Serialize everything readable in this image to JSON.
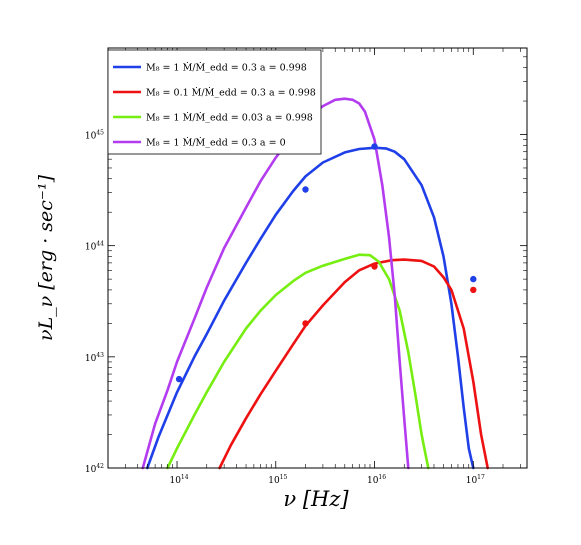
{
  "chart_data": {
    "type": "line",
    "title": "",
    "xlabel": "ν [Hz]",
    "ylabel": "νL_ν [erg · sec⁻¹]",
    "x_scale": "log",
    "y_scale": "log",
    "xlim": [
      20000000000000.0,
      3.5e+17
    ],
    "ylim": [
      1e+42,
      6e+45
    ],
    "grid": false,
    "legend_position": "top-left",
    "x_ticks": [
      {
        "base": "10",
        "exp": "14",
        "value": 100000000000000.0
      },
      {
        "base": "10",
        "exp": "15",
        "value": 1000000000000000.0
      },
      {
        "base": "10",
        "exp": "16",
        "value": 1e+16
      },
      {
        "base": "10",
        "exp": "17",
        "value": 1e+17
      }
    ],
    "y_ticks": [
      {
        "base": "10",
        "exp": "42",
        "value": 1e+42
      },
      {
        "base": "10",
        "exp": "43",
        "value": 1e+43
      },
      {
        "base": "10",
        "exp": "44",
        "value": 1e+44
      },
      {
        "base": "10",
        "exp": "45",
        "value": 1e+45
      }
    ],
    "series": [
      {
        "name": "M₈ = 1  Ṁ/Ṁ_edd = 0.3  a = 0.998",
        "color": "#1f3fe8",
        "x": [
          50000000000000.0,
          65000000000000.0,
          100000000000000.0,
          150000000000000.0,
          200000000000000.0,
          300000000000000.0,
          500000000000000.0,
          700000000000000.0,
          1000000000000000.0,
          1500000000000000.0,
          2000000000000000.0,
          3000000000000000.0,
          5000000000000000.0,
          7000000000000000.0,
          1e+16,
          1.3e+16,
          1.6e+16,
          2e+16,
          3e+16,
          4e+16,
          5e+16,
          6e+16,
          7e+16,
          8e+16,
          9e+16,
          1e+17
        ],
        "y": [
          1e+42,
          1.9e+42,
          4.8e+42,
          1e+43,
          1.6e+43,
          3.2e+43,
          7e+43,
          1.15e+44,
          1.9e+44,
          3.1e+44,
          4.2e+44,
          5.6e+44,
          6.9e+44,
          7.4e+44,
          7.6e+44,
          7.5e+44,
          7e+44,
          6e+44,
          3.5e+44,
          1.8e+44,
          8e+43,
          3e+43,
          1e+43,
          3.5e+42,
          1.5e+42,
          1e+42
        ]
      },
      {
        "name": "M₈ = 0.1  Ṁ/Ṁ_edd = 0.3  a = 0.998",
        "color": "#ee1111",
        "x": [
          270000000000000.0,
          350000000000000.0,
          500000000000000.0,
          700000000000000.0,
          1000000000000000.0,
          1500000000000000.0,
          2000000000000000.0,
          3000000000000000.0,
          5000000000000000.0,
          7000000000000000.0,
          1e+16,
          1.5e+16,
          2e+16,
          3e+16,
          4e+16,
          5e+16,
          6e+16,
          8e+16,
          1e+17,
          1.2e+17,
          1.4e+17
        ],
        "y": [
          1e+42,
          1.6e+42,
          2.8e+42,
          4.6e+42,
          7.5e+42,
          1.3e+43,
          1.9e+43,
          2.9e+43,
          4.7e+43,
          6e+43,
          6.9e+43,
          7.4e+43,
          7.5e+43,
          7.3e+43,
          6.5e+43,
          5.2e+43,
          4e+43,
          1.8e+43,
          6e+42,
          2e+42,
          1e+42
        ]
      },
      {
        "name": "M₈ = 1  Ṁ/Ṁ_edd = 0.03  a = 0.998",
        "color": "#77ee11",
        "x": [
          80000000000000.0,
          100000000000000.0,
          150000000000000.0,
          200000000000000.0,
          300000000000000.0,
          500000000000000.0,
          700000000000000.0,
          1000000000000000.0,
          1500000000000000.0,
          2000000000000000.0,
          3000000000000000.0,
          5000000000000000.0,
          7000000000000000.0,
          9000000000000000.0,
          1.1e+16,
          1.4e+16,
          1.8e+16,
          2.2e+16,
          2.6e+16,
          3e+16,
          3.3e+16,
          3.5e+16
        ],
        "y": [
          1e+42,
          1.5e+42,
          3e+42,
          4.8e+42,
          9e+42,
          1.8e+43,
          2.6e+43,
          3.6e+43,
          4.8e+43,
          5.7e+43,
          6.6e+43,
          7.6e+43,
          8.3e+43,
          8.2e+43,
          7.2e+43,
          5e+43,
          2.6e+43,
          1.1e+43,
          4.5e+42,
          2e+42,
          1.3e+42,
          1e+42
        ]
      },
      {
        "name": "M₈ = 1  Ṁ/Ṁ_edd = 0.3  a = 0",
        "color": "#b43cf0",
        "x": [
          45000000000000.0,
          60000000000000.0,
          80000000000000.0,
          100000000000000.0,
          150000000000000.0,
          200000000000000.0,
          300000000000000.0,
          500000000000000.0,
          700000000000000.0,
          1000000000000000.0,
          1500000000000000.0,
          2000000000000000.0,
          3000000000000000.0,
          4000000000000000.0,
          5000000000000000.0,
          6000000000000000.0,
          7000000000000000.0,
          8000000000000000.0,
          1e+16,
          1.2e+16,
          1.4e+16,
          1.6e+16,
          1.8e+16,
          2e+16,
          2.2e+16
        ],
        "y": [
          1e+42,
          2.5e+42,
          5e+42,
          9e+42,
          2.2e+43,
          4.2e+43,
          9.5e+43,
          2.2e+44,
          3.8e+44,
          6.2e+44,
          1e+45,
          1.35e+45,
          1.8e+45,
          2.05e+45,
          2.1e+45,
          2.05e+45,
          1.9e+45,
          1.6e+45,
          9e+44,
          3.5e+44,
          1.2e+44,
          3.6e+43,
          9e+42,
          2.8e+42,
          1e+42
        ]
      }
    ],
    "points": [
      {
        "series": 0,
        "x": 105000000000000.0,
        "y": 6.3e+42
      },
      {
        "series": 0,
        "x": 2000000000000000.0,
        "y": 3.2e+44
      },
      {
        "series": 0,
        "x": 1e+16,
        "y": 7.8e+44
      },
      {
        "series": 0,
        "x": 1e+17,
        "y": 5e+43
      },
      {
        "series": 1,
        "x": 2000000000000000.0,
        "y": 2e+43
      },
      {
        "series": 1,
        "x": 1e+16,
        "y": 6.5e+43
      },
      {
        "series": 1,
        "x": 1e+17,
        "y": 4e+43
      }
    ]
  }
}
